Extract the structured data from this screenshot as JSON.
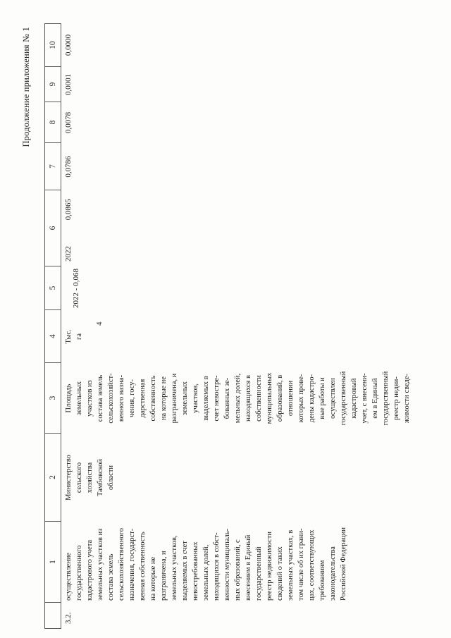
{
  "page": {
    "continuation_label": "Продолжение приложения № 1",
    "page_number": "4"
  },
  "table": {
    "column_numbers": [
      "",
      "1",
      "2",
      "3",
      "4",
      "5",
      "6",
      "7",
      "8",
      "9",
      "10"
    ],
    "row": {
      "index": "3.2.",
      "result_name": "осуществление\nгосударственного\nкадастрового учета\nземельных участков из\nсостава земель\nсельскохозяйственного\nназначения, государст-\nвенная собственность\nна которые не\nразграничена, и\nземельных участков,\nвыделяемых в счет\nневостребованных\nземельных долей,\nнаходящихся в собст-\nвенности муниципаль-\nных образований, с\nвнесением в Единый\nгосударственный\nреестр недвижимости\nсведений о таких\nземельных участках, в\nтом числе об их грани-\nцах, соответствующих\nтребованиям\nзаконодательства\nРоссийской Федерации",
      "executor": "Министерство\nсельского\nхозяйства\nТамбовской\nобласти",
      "indicator_name": "Площадь\nземельных\nучастков из\nсостава земель\nсельскохозяйст-\nвенного назна-\nчения, госу-\nдарственная\nсобственность\nна которые не\nразграничена, и\nземельных\nучастков,\nвыделяемых в\nсчет невостре-\nбованных зе-\nмельных долей,\nнаходящихся в\nсобственности\nмуниципальных\nобразований, в\nотношении\nкоторых прове-\nдены кадастро-\nвые работы и\nосуществлен\nгосударственный\nкадастровый\nучет, с внесени-\nем в Единый\nгосударственный\nреестр недви-\nжимости сведе-",
      "unit": "Тыс.\nга",
      "base_value": "2022 - 0,068",
      "col6_year": "2022",
      "col6_value": "0,0865",
      "col7_value": "0,0786",
      "col8_value": "0,0078",
      "col9_value": "0,0001",
      "col10_value": "0,0000"
    }
  }
}
